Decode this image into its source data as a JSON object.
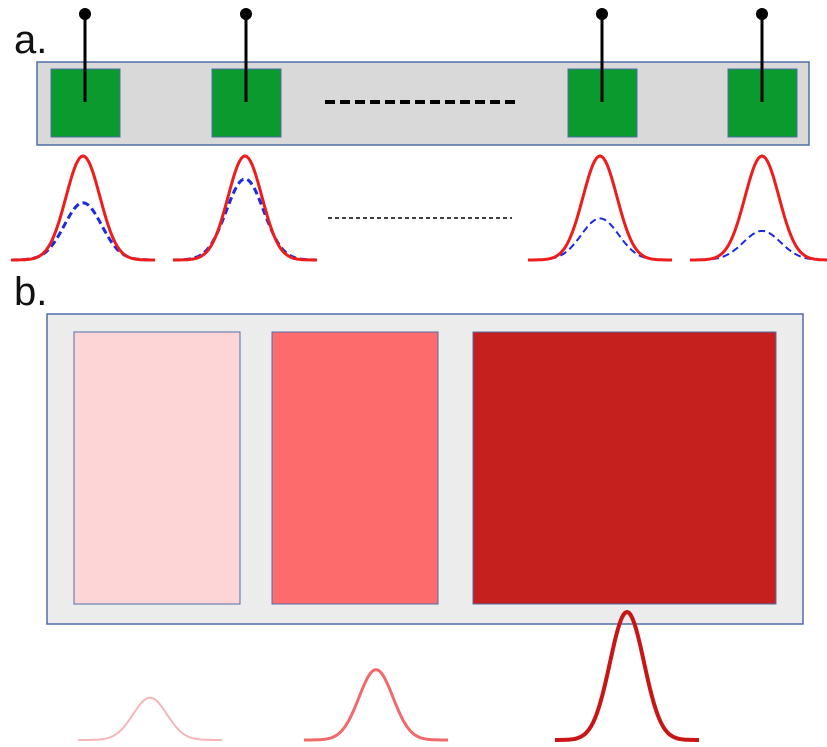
{
  "panel_a": {
    "label": "a.",
    "sensor_count_shown": 4,
    "colors": {
      "bar_fill": "#d9d9d9",
      "bar_stroke": "#4f6ea8",
      "sensor_fill": "#0a9a2e",
      "probe": "#000000",
      "curve_solid": "#ee1c1c",
      "curve_dashed": "#1a2be0"
    },
    "dashed_curve_relative_heights": [
      0.55,
      0.78,
      0.4,
      0.28
    ]
  },
  "panel_b": {
    "label": "b.",
    "colors": {
      "frame_fill": "#ececec",
      "frame_stroke": "#4f6ea8",
      "blocks": [
        "#fdd5d7",
        "#fe6b6d",
        "#c6201e"
      ],
      "curves": [
        "#f4b6b8",
        "#f06a6c",
        "#c81616"
      ]
    },
    "curve_relative_heights": [
      0.33,
      0.55,
      1.0
    ]
  }
}
